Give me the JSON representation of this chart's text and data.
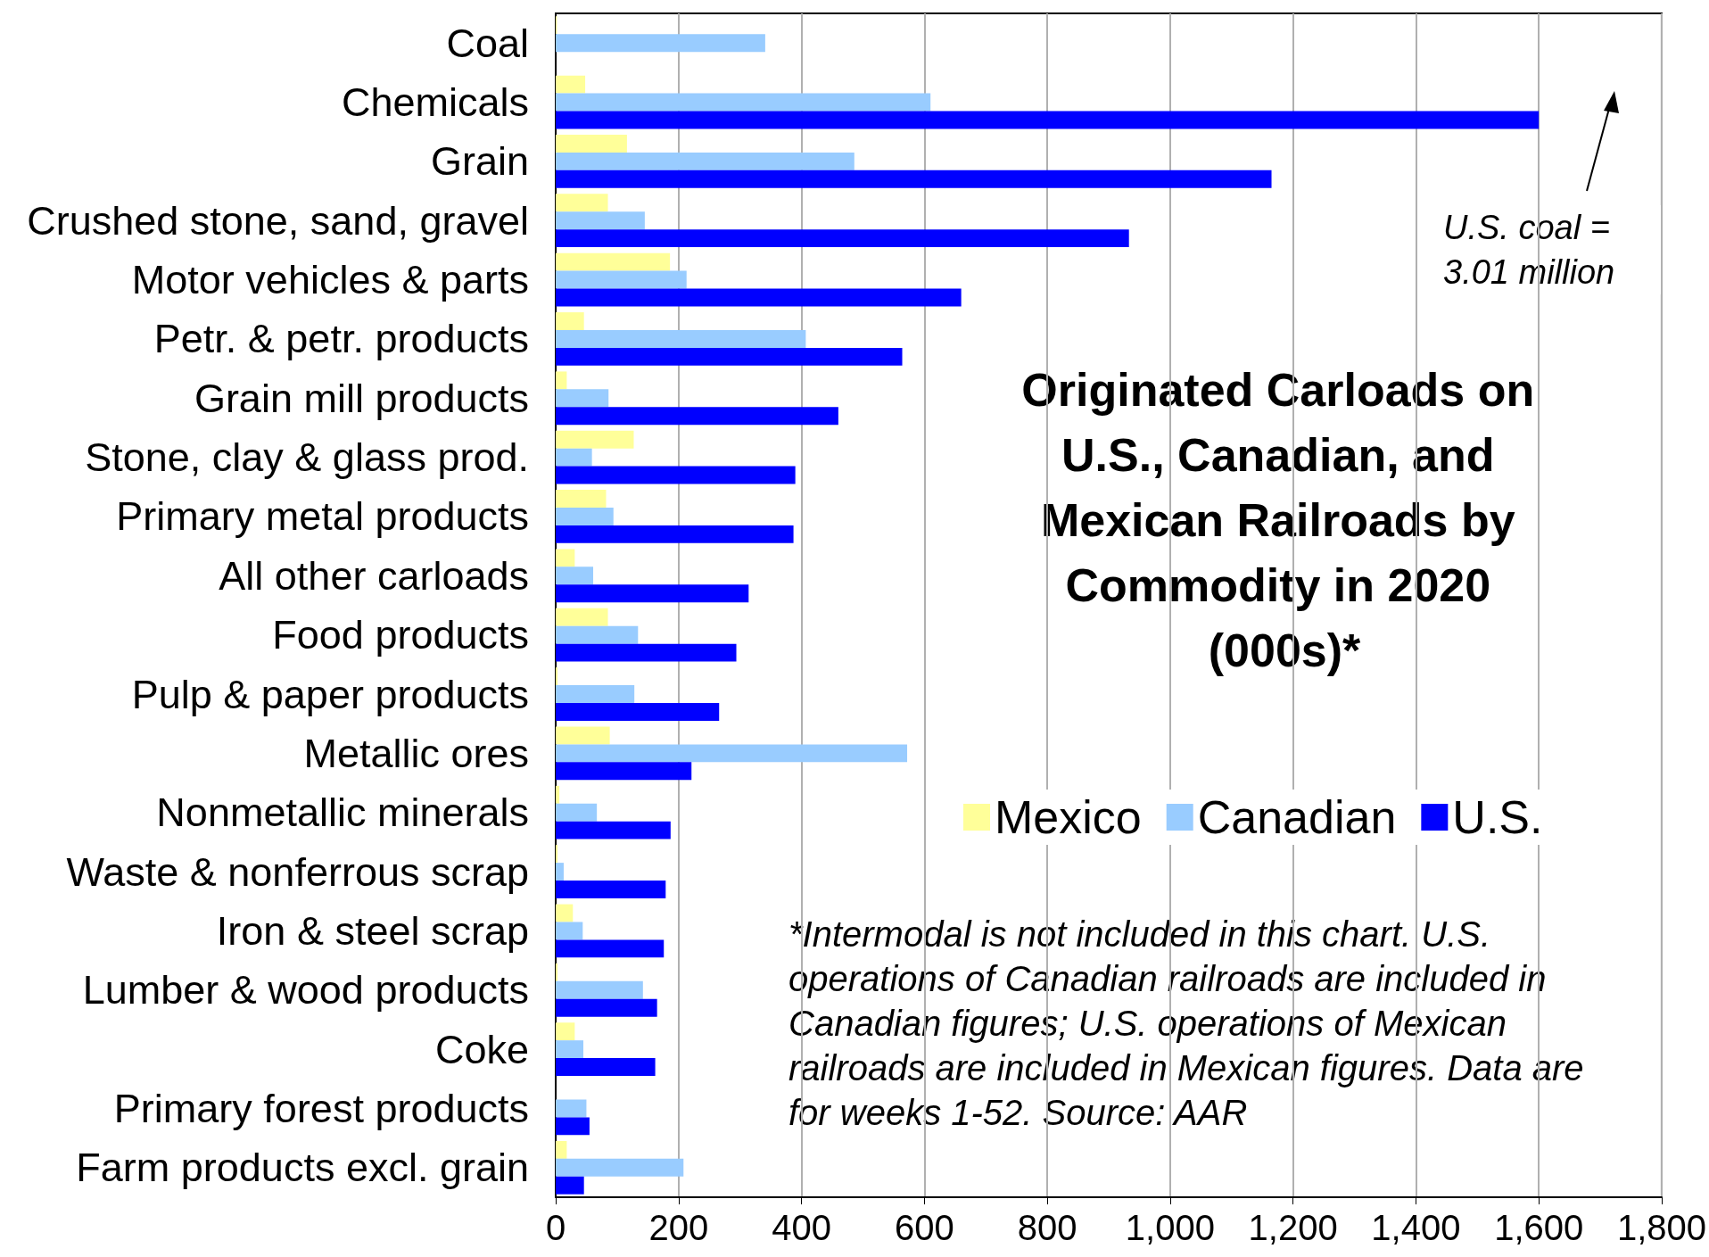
{
  "chart_data": {
    "type": "bar",
    "orientation": "horizontal",
    "title": "Originated Carloads on U.S., Canadian, and Mexican Railroads by Commodity in 2020 (000s)*",
    "categories": [
      "Coal",
      "Chemicals",
      "Grain",
      "Crushed stone, sand, gravel",
      "Motor vehicles & parts",
      "Petr. & petr. products",
      "Grain mill products",
      "Stone, clay & glass prod.",
      "Primary metal products",
      "All other carloads",
      "Food products",
      "Pulp & paper products",
      "Metallic ores",
      "Nonmetallic minerals",
      "Waste & nonferrous scrap",
      "Iron & steel scrap",
      "Lumber & wood products",
      "Coke",
      "Primary forest products",
      "Farm products excl. grain"
    ],
    "series": [
      {
        "name": "Mexico",
        "color": "#ffff99",
        "values": [
          2,
          48,
          116,
          85,
          186,
          46,
          18,
          127,
          82,
          31,
          85,
          3,
          88,
          6,
          3,
          28,
          3,
          31,
          0,
          18
        ]
      },
      {
        "name": "Canadian",
        "color": "#99ccff",
        "values": [
          341,
          610,
          486,
          145,
          213,
          407,
          86,
          59,
          94,
          61,
          134,
          128,
          572,
          67,
          13,
          44,
          142,
          45,
          50,
          208
        ]
      },
      {
        "name": "U.S.",
        "color": "#0000ff",
        "values": [
          null,
          1600,
          1165,
          933,
          660,
          564,
          460,
          390,
          387,
          314,
          294,
          266,
          221,
          187,
          179,
          176,
          165,
          162,
          55,
          46
        ]
      }
    ],
    "xlim": [
      0,
      1800
    ],
    "xticks": [
      0,
      200,
      400,
      600,
      800,
      {
        "value": 1000,
        "label": "1,000"
      },
      {
        "value": 1200,
        "label": "1,200"
      },
      {
        "value": 1400,
        "label": "1,400"
      },
      {
        "value": 1600,
        "label": "1,600"
      },
      {
        "value": 1800,
        "label": "1,800"
      }
    ],
    "grid": "x",
    "legend": "right",
    "annotations": [
      "U.S. coal = 3.01 million",
      "*Intermodal is not included in this chart. U.S. operations of Canadian railroads are included in Canadian figures; U.S. operations of Mexican railroads are included in Mexican figures. Data are for weeks 1-52. Source: AAR"
    ]
  }
}
